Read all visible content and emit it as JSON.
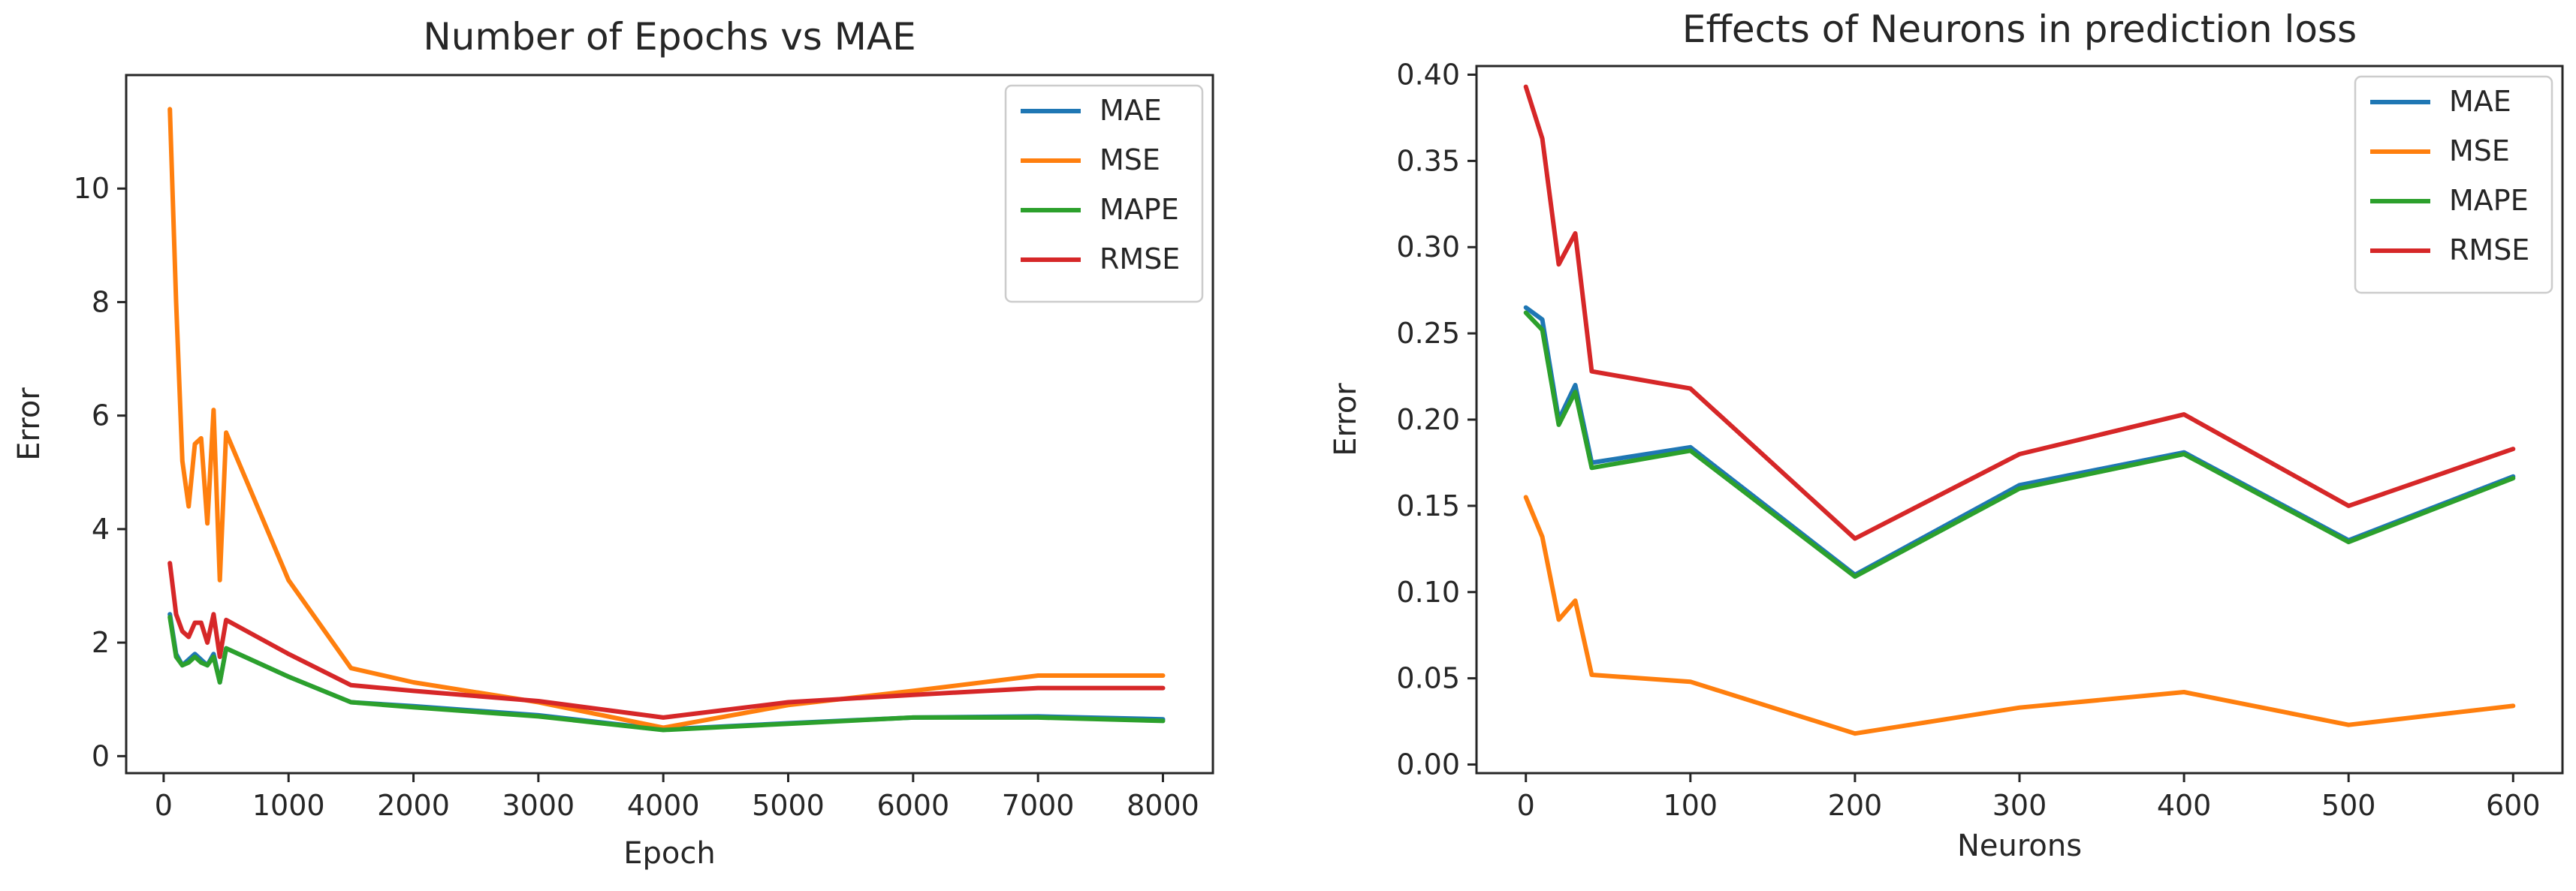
{
  "colors": {
    "MAE": "#1f77b4",
    "MSE": "#ff7f0e",
    "MAPE": "#2ca02c",
    "RMSE": "#d62728"
  },
  "chart_data": [
    {
      "type": "line",
      "title": "Number of Epochs vs MAE",
      "xlabel": "Epoch",
      "ylabel": "Error",
      "xlim": [
        -300,
        8400
      ],
      "ylim": [
        -0.3,
        12.0
      ],
      "xticks": [
        0,
        1000,
        2000,
        3000,
        4000,
        5000,
        6000,
        7000,
        8000
      ],
      "yticks": [
        0,
        2,
        4,
        6,
        8,
        10
      ],
      "legend": "top-right",
      "x": [
        50,
        100,
        150,
        200,
        250,
        300,
        350,
        400,
        450,
        500,
        1000,
        1500,
        2000,
        3000,
        4000,
        5000,
        6000,
        7000,
        8000
      ],
      "series": [
        {
          "name": "MAE",
          "values": [
            2.5,
            1.8,
            1.6,
            1.7,
            1.8,
            1.7,
            1.6,
            1.8,
            1.3,
            1.9,
            1.4,
            0.95,
            0.88,
            0.72,
            0.47,
            0.58,
            0.68,
            0.7,
            0.65
          ]
        },
        {
          "name": "MSE",
          "values": [
            11.4,
            8.0,
            5.2,
            4.4,
            5.5,
            5.6,
            4.1,
            6.1,
            3.1,
            5.7,
            3.1,
            1.55,
            1.3,
            0.95,
            0.5,
            0.9,
            1.15,
            1.42,
            1.42
          ]
        },
        {
          "name": "MAPE",
          "values": [
            2.45,
            1.75,
            1.6,
            1.65,
            1.75,
            1.65,
            1.6,
            1.75,
            1.3,
            1.9,
            1.4,
            0.95,
            0.86,
            0.7,
            0.46,
            0.57,
            0.68,
            0.68,
            0.62
          ]
        },
        {
          "name": "RMSE",
          "values": [
            3.4,
            2.5,
            2.2,
            2.1,
            2.35,
            2.35,
            2.0,
            2.5,
            1.75,
            2.4,
            1.8,
            1.25,
            1.15,
            0.97,
            0.68,
            0.95,
            1.08,
            1.2,
            1.2
          ]
        }
      ]
    },
    {
      "type": "line",
      "title": "Effects of Neurons in prediction loss",
      "xlabel": "Neurons",
      "ylabel": "Error",
      "xlim": [
        -30,
        630
      ],
      "ylim": [
        -0.005,
        0.405
      ],
      "xticks": [
        0,
        100,
        200,
        300,
        400,
        500,
        600
      ],
      "yticks": [
        0.0,
        0.05,
        0.1,
        0.15,
        0.2,
        0.25,
        0.3,
        0.35,
        0.4
      ],
      "ytick_labels": [
        "0.00",
        "0.05",
        "0.10",
        "0.15",
        "0.20",
        "0.25",
        "0.30",
        "0.35",
        "0.40"
      ],
      "legend": "top-right",
      "x": [
        0,
        10,
        20,
        30,
        40,
        100,
        200,
        300,
        400,
        500,
        600
      ],
      "series": [
        {
          "name": "MAE",
          "values": [
            0.265,
            0.258,
            0.2,
            0.22,
            0.175,
            0.184,
            0.11,
            0.162,
            0.181,
            0.13,
            0.167
          ]
        },
        {
          "name": "MSE",
          "values": [
            0.155,
            0.132,
            0.084,
            0.095,
            0.052,
            0.048,
            0.018,
            0.033,
            0.042,
            0.023,
            0.034
          ]
        },
        {
          "name": "MAPE",
          "values": [
            0.262,
            0.252,
            0.197,
            0.216,
            0.172,
            0.182,
            0.109,
            0.16,
            0.18,
            0.129,
            0.166
          ]
        },
        {
          "name": "RMSE",
          "values": [
            0.393,
            0.363,
            0.29,
            0.308,
            0.228,
            0.218,
            0.131,
            0.18,
            0.203,
            0.15,
            0.183
          ]
        }
      ]
    }
  ]
}
